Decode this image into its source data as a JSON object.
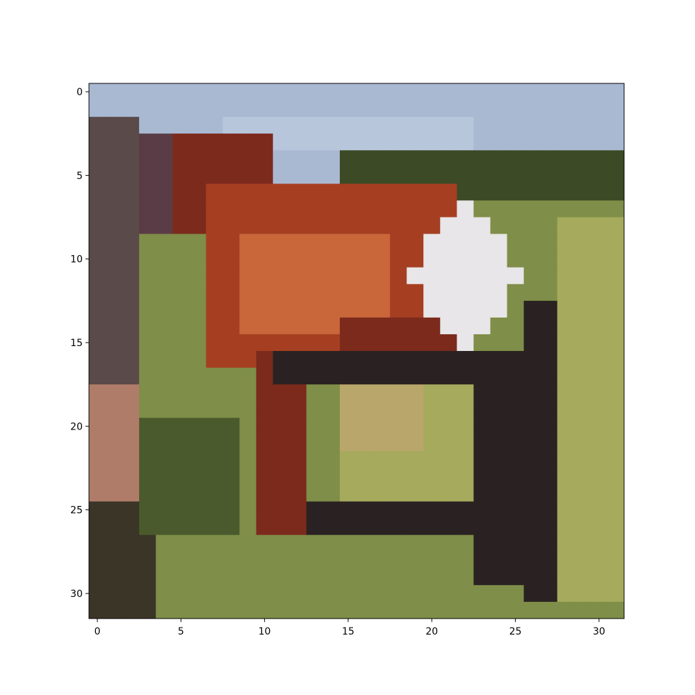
{
  "image": {
    "description_kind": "pixelated thumbnail",
    "grid_size": [
      32,
      32
    ]
  },
  "axes": {
    "x_ticks": [
      "0",
      "5",
      "10",
      "15",
      "20",
      "25",
      "30"
    ],
    "y_ticks": [
      "0",
      "5",
      "10",
      "15",
      "20",
      "25",
      "30"
    ],
    "x_tick_values": [
      0,
      5,
      10,
      15,
      20,
      25,
      30
    ],
    "y_tick_values": [
      0,
      5,
      10,
      15,
      20,
      25,
      30
    ]
  },
  "palette": {
    "sky": "#a9b9d2",
    "sky_light": "#b8c6dc",
    "horse_dark_red": "#7c2a1c",
    "horse_red": "#a63f22",
    "horse_orange": "#c9663a",
    "blaze_white": "#e8e6e8",
    "mane_dark": "#5a3c46",
    "fence_dark": "#2a2222",
    "grass_light": "#a5aa5c",
    "grass": "#7f8e48",
    "grass_dark": "#4a5a2c",
    "trees": "#3c4a26",
    "ground_pink": "#b07c6a",
    "tan": "#b8a66a"
  }
}
